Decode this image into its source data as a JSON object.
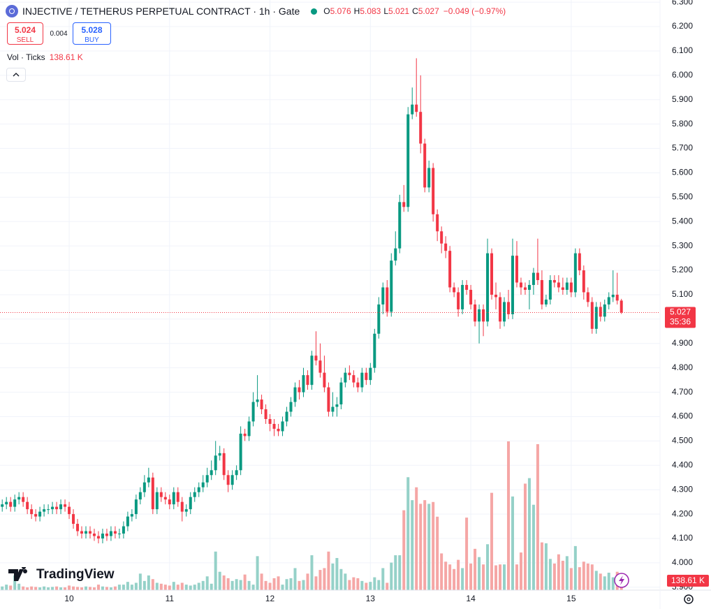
{
  "header": {
    "title": "INJECTIVE / TETHERUS PERPETUAL CONTRACT · 1h · Gate",
    "ohlc_labels": [
      "O",
      "H",
      "L",
      "C"
    ],
    "change": "−0.049 (−0.97%)",
    "sell": {
      "price": 5.024,
      "label": "SELL"
    },
    "spread": 0.004,
    "buy": {
      "price": 5.028,
      "label": "BUY"
    },
    "indicator": "Vol · Ticks",
    "countdown": "35:36",
    "brand": "TradingView"
  },
  "chart_data": {
    "type": "candlestick",
    "categories": [
      null,
      null,
      null,
      null,
      null,
      null,
      null,
      null,
      null,
      null,
      null,
      null,
      null,
      null,
      null,
      null,
      "10",
      null,
      null,
      null,
      null,
      null,
      null,
      null,
      null,
      null,
      null,
      null,
      null,
      null,
      null,
      null,
      null,
      null,
      null,
      null,
      null,
      null,
      null,
      null,
      "11",
      null,
      null,
      null,
      null,
      null,
      null,
      null,
      null,
      null,
      null,
      null,
      null,
      null,
      null,
      null,
      null,
      null,
      null,
      null,
      null,
      null,
      null,
      null,
      "12",
      null,
      null,
      null,
      null,
      null,
      null,
      null,
      null,
      null,
      null,
      null,
      null,
      null,
      null,
      null,
      null,
      null,
      null,
      null,
      null,
      null,
      null,
      null,
      "13",
      null,
      null,
      null,
      null,
      null,
      null,
      null,
      null,
      null,
      null,
      null,
      null,
      null,
      null,
      null,
      null,
      null,
      null,
      null,
      null,
      null,
      null,
      null,
      "14",
      null,
      null,
      null,
      null,
      null,
      null,
      null,
      null,
      null,
      null,
      null,
      null,
      null,
      null,
      null,
      null,
      null,
      null,
      null,
      null,
      null,
      null,
      null,
      "15",
      null,
      null,
      null,
      null,
      null,
      null,
      null,
      null,
      null,
      null,
      null,
      null
    ],
    "open": [
      4.23,
      4.24,
      4.25,
      4.23,
      4.26,
      4.27,
      4.25,
      4.22,
      4.2,
      4.19,
      4.21,
      4.22,
      4.22,
      4.23,
      4.22,
      4.24,
      4.23,
      4.2,
      4.16,
      4.13,
      4.12,
      4.13,
      4.12,
      4.11,
      4.1,
      4.12,
      4.11,
      4.13,
      4.12,
      4.12,
      4.15,
      4.19,
      4.2,
      4.26,
      4.29,
      4.33,
      4.35,
      4.22,
      4.29,
      4.27,
      4.26,
      4.24,
      4.29,
      4.25,
      4.21,
      4.22,
      4.27,
      4.29,
      4.31,
      4.33,
      4.36,
      4.38,
      4.44,
      4.45,
      4.36,
      4.32,
      4.36,
      4.38,
      4.53,
      4.52,
      4.58,
      4.66,
      4.67,
      4.63,
      4.59,
      4.57,
      4.55,
      4.54,
      4.58,
      4.62,
      4.66,
      4.72,
      4.7,
      4.77,
      4.73,
      4.85,
      4.83,
      4.78,
      4.72,
      4.62,
      4.64,
      4.65,
      4.74,
      4.78,
      4.77,
      4.74,
      4.72,
      4.78,
      4.75,
      4.8,
      4.94,
      5.06,
      5.13,
      5.03,
      5.24,
      5.29,
      5.48,
      5.46,
      5.84,
      5.88,
      5.85,
      5.72,
      5.54,
      5.62,
      5.43,
      5.36,
      5.31,
      5.28,
      5.13,
      5.11,
      5.04,
      5.14,
      5.12,
      5.06,
      4.99,
      5.04,
      4.99,
      5.27,
      5.1,
      5.09,
      4.99,
      5.07,
      5.02,
      5.26,
      5.15,
      5.13,
      5.12,
      5.14,
      5.19,
      5.16,
      5.06,
      5.08,
      5.16,
      5.15,
      5.13,
      5.12,
      5.15,
      5.11,
      5.27,
      5.2,
      5.11,
      5.07,
      4.96,
      5.05,
      5.01,
      5.06,
      5.09,
      5.1,
      5.076
    ],
    "high": [
      4.26,
      4.27,
      4.27,
      4.28,
      4.29,
      4.29,
      4.27,
      4.24,
      4.22,
      4.23,
      4.24,
      4.24,
      4.25,
      4.25,
      4.26,
      4.26,
      4.25,
      4.22,
      4.18,
      4.15,
      4.15,
      4.15,
      4.14,
      4.13,
      4.14,
      4.14,
      4.15,
      4.15,
      4.14,
      4.17,
      4.21,
      4.22,
      4.28,
      4.31,
      4.36,
      4.39,
      4.37,
      4.31,
      4.31,
      4.29,
      4.28,
      4.31,
      4.31,
      4.27,
      4.24,
      4.29,
      4.31,
      4.33,
      4.36,
      4.39,
      4.42,
      4.5,
      4.48,
      4.47,
      4.38,
      4.38,
      4.4,
      4.56,
      4.55,
      4.6,
      4.7,
      4.77,
      4.69,
      4.65,
      4.61,
      4.59,
      4.57,
      4.6,
      4.64,
      4.68,
      4.74,
      4.75,
      4.8,
      4.79,
      4.87,
      4.95,
      4.9,
      4.85,
      4.74,
      4.7,
      4.68,
      4.76,
      4.8,
      4.81,
      4.79,
      4.76,
      4.8,
      4.8,
      4.82,
      4.96,
      5.09,
      5.15,
      5.16,
      5.27,
      5.36,
      5.51,
      5.55,
      5.87,
      5.95,
      6.07,
      6.0,
      5.74,
      5.65,
      5.64,
      5.45,
      5.38,
      5.34,
      5.3,
      5.15,
      5.13,
      5.16,
      5.16,
      5.14,
      5.08,
      5.06,
      5.06,
      5.33,
      5.29,
      5.15,
      5.11,
      5.09,
      5.12,
      5.33,
      5.32,
      5.17,
      5.15,
      5.16,
      5.21,
      5.33,
      5.2,
      5.1,
      5.18,
      5.18,
      5.18,
      5.17,
      5.17,
      5.17,
      5.29,
      5.29,
      5.22,
      5.13,
      5.09,
      5.07,
      5.07,
      5.08,
      5.11,
      5.2,
      5.19,
      5.083
    ],
    "low": [
      4.21,
      4.22,
      4.21,
      4.21,
      4.24,
      4.23,
      4.2,
      4.18,
      4.17,
      4.17,
      4.19,
      4.2,
      4.2,
      4.2,
      4.2,
      4.21,
      4.18,
      4.14,
      4.11,
      4.1,
      4.1,
      4.1,
      4.09,
      4.08,
      4.08,
      4.09,
      4.09,
      4.1,
      4.1,
      4.1,
      4.13,
      4.17,
      4.18,
      4.24,
      4.27,
      4.31,
      4.2,
      4.2,
      4.25,
      4.24,
      4.22,
      4.22,
      4.23,
      4.17,
      4.19,
      4.2,
      4.25,
      4.27,
      4.29,
      4.31,
      4.34,
      4.36,
      4.42,
      4.34,
      4.29,
      4.3,
      4.34,
      4.36,
      4.5,
      4.5,
      4.56,
      4.64,
      4.61,
      4.57,
      4.54,
      4.52,
      4.52,
      4.52,
      4.56,
      4.6,
      4.64,
      4.67,
      4.68,
      4.71,
      4.71,
      4.81,
      4.76,
      4.7,
      4.6,
      4.6,
      4.6,
      4.63,
      4.72,
      4.75,
      4.72,
      4.7,
      4.7,
      4.73,
      4.73,
      4.78,
      4.92,
      5.02,
      5.01,
      5.01,
      5.22,
      5.27,
      5.44,
      5.44,
      5.82,
      5.83,
      5.68,
      5.52,
      5.52,
      5.4,
      5.32,
      5.27,
      5.25,
      5.11,
      5.09,
      5.01,
      5.02,
      5.1,
      5.04,
      4.97,
      4.9,
      4.93,
      4.97,
      5.08,
      5.04,
      4.96,
      4.97,
      5.0,
      5.0,
      5.13,
      5.1,
      5.1,
      5.04,
      5.1,
      5.14,
      5.04,
      5.05,
      5.06,
      5.13,
      5.11,
      5.1,
      5.1,
      5.09,
      5.09,
      5.18,
      5.08,
      5.05,
      4.94,
      4.94,
      4.99,
      4.99,
      5.04,
      5.07,
      5.06,
      5.021
    ],
    "close": [
      4.24,
      4.25,
      4.23,
      4.26,
      4.27,
      4.25,
      4.22,
      4.2,
      4.19,
      4.21,
      4.22,
      4.22,
      4.23,
      4.22,
      4.24,
      4.23,
      4.2,
      4.16,
      4.13,
      4.12,
      4.13,
      4.12,
      4.11,
      4.1,
      4.12,
      4.11,
      4.13,
      4.12,
      4.12,
      4.15,
      4.19,
      4.2,
      4.26,
      4.29,
      4.33,
      4.35,
      4.22,
      4.29,
      4.27,
      4.26,
      4.24,
      4.29,
      4.25,
      4.21,
      4.22,
      4.27,
      4.29,
      4.31,
      4.33,
      4.36,
      4.38,
      4.44,
      4.45,
      4.36,
      4.32,
      4.36,
      4.38,
      4.53,
      4.52,
      4.58,
      4.66,
      4.67,
      4.63,
      4.59,
      4.57,
      4.55,
      4.54,
      4.58,
      4.62,
      4.66,
      4.72,
      4.7,
      4.77,
      4.73,
      4.85,
      4.83,
      4.78,
      4.72,
      4.62,
      4.64,
      4.65,
      4.74,
      4.78,
      4.77,
      4.74,
      4.72,
      4.78,
      4.75,
      4.8,
      4.94,
      5.06,
      5.13,
      5.03,
      5.24,
      5.29,
      5.48,
      5.46,
      5.84,
      5.88,
      5.85,
      5.72,
      5.54,
      5.62,
      5.43,
      5.36,
      5.31,
      5.28,
      5.13,
      5.11,
      5.04,
      5.14,
      5.12,
      5.06,
      4.99,
      5.04,
      4.99,
      5.27,
      5.1,
      5.09,
      4.99,
      5.07,
      5.02,
      5.26,
      5.15,
      5.13,
      5.12,
      5.14,
      5.19,
      5.16,
      5.06,
      5.08,
      5.16,
      5.15,
      5.13,
      5.12,
      5.15,
      5.11,
      5.27,
      5.2,
      5.11,
      5.07,
      4.96,
      5.05,
      5.01,
      5.06,
      5.09,
      5.1,
      5.076,
      5.027
    ],
    "volume": {
      "name": "Vol",
      "values": [
        40,
        60,
        50,
        160,
        70,
        40,
        30,
        40,
        35,
        30,
        40,
        30,
        35,
        40,
        30,
        30,
        50,
        40,
        35,
        30,
        40,
        35,
        30,
        60,
        40,
        35,
        30,
        40,
        60,
        60,
        90,
        60,
        80,
        180,
        100,
        160,
        120,
        80,
        70,
        60,
        50,
        90,
        60,
        80,
        60,
        50,
        60,
        80,
        100,
        150,
        70,
        420,
        200,
        160,
        130,
        100,
        120,
        110,
        170,
        100,
        60,
        370,
        180,
        100,
        80,
        130,
        150,
        60,
        120,
        130,
        240,
        100,
        110,
        180,
        380,
        150,
        220,
        240,
        420,
        290,
        350,
        230,
        180,
        110,
        140,
        130,
        100,
        80,
        90,
        140,
        110,
        240,
        80,
        300,
        380,
        380,
        870,
        1230,
        980,
        1120,
        940,
        980,
        940,
        960,
        800,
        400,
        310,
        280,
        230,
        330,
        240,
        790,
        290,
        450,
        360,
        280,
        500,
        1060,
        270,
        280,
        280,
        1620,
        1020,
        280,
        410,
        1160,
        1220,
        930,
        1590,
        520,
        510,
        340,
        290,
        390,
        320,
        370,
        240,
        480,
        250,
        310,
        290,
        280,
        210,
        180,
        150,
        190,
        140,
        200,
        138.61
      ],
      "value_labels": [
        null,
        null,
        null,
        null,
        null,
        null,
        null,
        null,
        null,
        null,
        null,
        null,
        null,
        null,
        null,
        null,
        null,
        null,
        null,
        null,
        null,
        null,
        null,
        null,
        null,
        null,
        null,
        null,
        null,
        null,
        null,
        null,
        null,
        null,
        null,
        null,
        null,
        null,
        null,
        null,
        null,
        null,
        null,
        null,
        null,
        null,
        null,
        null,
        null,
        null,
        null,
        null,
        null,
        null,
        null,
        null,
        null,
        null,
        null,
        null,
        null,
        null,
        null,
        null,
        null,
        null,
        null,
        null,
        null,
        null,
        null,
        null,
        null,
        null,
        null,
        null,
        null,
        null,
        null,
        null,
        null,
        null,
        null,
        null,
        null,
        null,
        null,
        null,
        null,
        null,
        null,
        null,
        null,
        null,
        null,
        null,
        null,
        null,
        null,
        null,
        null,
        null,
        null,
        null,
        null,
        null,
        null,
        null,
        null,
        null,
        null,
        null,
        null,
        null,
        null,
        null,
        null,
        null,
        null,
        null,
        null,
        null,
        null,
        null,
        null,
        null,
        null,
        null,
        null,
        null,
        null,
        null,
        null,
        null,
        null,
        null,
        null,
        null,
        null,
        null,
        null,
        null,
        null,
        null,
        null,
        null,
        null,
        null,
        "138.61 K"
      ]
    },
    "up_color": "#089981",
    "down_color": "#f23645",
    "volume_up_color": "#95d1c8",
    "volume_down_color": "#f5a6a5",
    "ylim": [
      3.888,
      6.309
    ],
    "yticks": [
      {
        "value": 3.9,
        "label": "3.900"
      },
      {
        "value": 4.0,
        "label": "4.000"
      },
      {
        "value": 4.1,
        "label": "4.100"
      },
      {
        "value": 4.2,
        "label": "4.200"
      },
      {
        "value": 4.3,
        "label": "4.300"
      },
      {
        "value": 4.4,
        "label": "4.400"
      },
      {
        "value": 4.5,
        "label": "4.500"
      },
      {
        "value": 4.6,
        "label": "4.600"
      },
      {
        "value": 4.7,
        "label": "4.700"
      },
      {
        "value": 4.8,
        "label": "4.800"
      },
      {
        "value": 4.9,
        "label": "4.900"
      },
      {
        "value": 5.0,
        "label": "5.000"
      },
      {
        "value": 5.1,
        "label": "5.100"
      },
      {
        "value": 5.2,
        "label": "5.200"
      },
      {
        "value": 5.3,
        "label": "5.300"
      },
      {
        "value": 5.4,
        "label": "5.400"
      },
      {
        "value": 5.5,
        "label": "5.500"
      },
      {
        "value": 5.6,
        "label": "5.600"
      },
      {
        "value": 5.7,
        "label": "5.700"
      },
      {
        "value": 5.8,
        "label": "5.800"
      },
      {
        "value": 5.9,
        "label": "5.900"
      },
      {
        "value": 6.0,
        "label": "6.000"
      },
      {
        "value": 6.1,
        "label": "6.100"
      },
      {
        "value": 6.2,
        "label": "6.200"
      },
      {
        "value": 6.3,
        "label": "6.300"
      }
    ],
    "grid": true
  }
}
